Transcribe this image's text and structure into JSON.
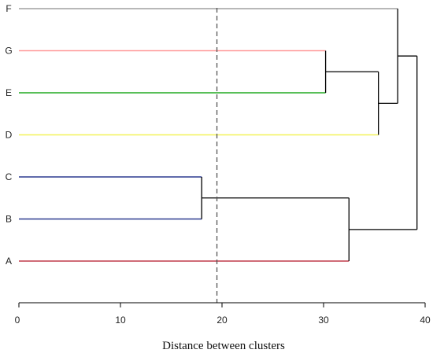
{
  "chart_data": {
    "type": "dendrogram",
    "title": "",
    "xlabel": "Distance between clusters",
    "ylabel": "",
    "xlim": [
      0,
      40
    ],
    "xticks": [
      0,
      10,
      20,
      30,
      40
    ],
    "grid": false,
    "legend": "none",
    "cutoff": 19.5,
    "leaves": [
      {
        "label": "F",
        "color": "#a0a0a0"
      },
      {
        "label": "G",
        "color": "#ff9999"
      },
      {
        "label": "E",
        "color": "#22aa22"
      },
      {
        "label": "D",
        "color": "#f2f25a"
      },
      {
        "label": "C",
        "color": "#2b3a8f"
      },
      {
        "label": "B",
        "color": "#2b3a8f"
      },
      {
        "label": "A",
        "color": "#c03a4a"
      }
    ],
    "merges": [
      {
        "id": "BC",
        "left": "C",
        "right": "B",
        "height": 18.0
      },
      {
        "id": "GE",
        "left": "G",
        "right": "E",
        "height": 30.2
      },
      {
        "id": "ABC",
        "left": "BC",
        "right": "A",
        "height": 32.5
      },
      {
        "id": "DEG",
        "left": "GE",
        "right": "D",
        "height": 35.4
      },
      {
        "id": "DEFG",
        "left": "F",
        "right": "DEG",
        "height": 37.3
      },
      {
        "id": "ALL",
        "left": "DEFG",
        "right": "ABC",
        "height": 39.2
      }
    ]
  }
}
